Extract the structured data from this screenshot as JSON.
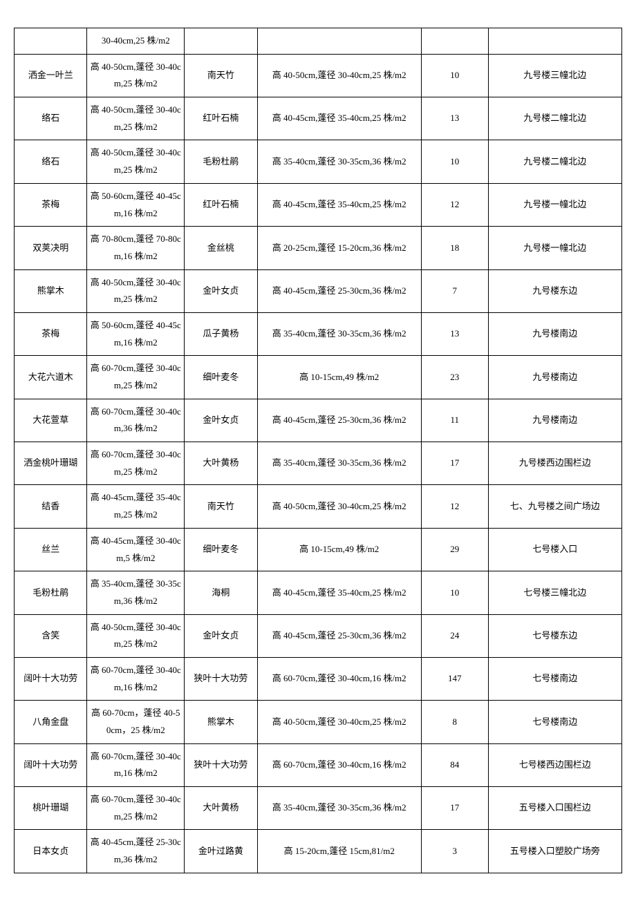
{
  "table": {
    "columns": [
      "col0",
      "col1",
      "col2",
      "col3",
      "col4",
      "col5"
    ],
    "rows": [
      [
        "",
        "30-40cm,25 株/m2",
        "",
        "",
        "",
        ""
      ],
      [
        "洒金一叶兰",
        "高 40-50cm,蓬径 30-40cm,25 株/m2",
        "南天竹",
        "高 40-50cm,蓬径 30-40cm,25 株/m2",
        "10",
        "九号楼三幢北边"
      ],
      [
        "络石",
        "高 40-50cm,蓬径 30-40cm,25 株/m2",
        "红叶石楠",
        "高 40-45cm,蓬径 35-40cm,25 株/m2",
        "13",
        "九号楼二幢北边"
      ],
      [
        "络石",
        "高 40-50cm,蓬径 30-40cm,25 株/m2",
        "毛粉杜鹃",
        "高 35-40cm,蓬径 30-35cm,36 株/m2",
        "10",
        "九号楼二幢北边"
      ],
      [
        "茶梅",
        "高 50-60cm,蓬径 40-45cm,16 株/m2",
        "红叶石楠",
        "高 40-45cm,蓬径 35-40cm,25 株/m2",
        "12",
        "九号楼一幢北边"
      ],
      [
        "双荚决明",
        "高 70-80cm,蓬径 70-80cm,16 株/m2",
        "金丝桃",
        "高 20-25cm,蓬径 15-20cm,36 株/m2",
        "18",
        "九号楼一幢北边"
      ],
      [
        "熊掌木",
        "高 40-50cm,蓬径 30-40cm,25 株/m2",
        "金叶女贞",
        "高 40-45cm,蓬径 25-30cm,36 株/m2",
        "7",
        "九号楼东边"
      ],
      [
        "茶梅",
        "高 50-60cm,蓬径 40-45cm,16 株/m2",
        "瓜子黄杨",
        "高 35-40cm,蓬径 30-35cm,36 株/m2",
        "13",
        "九号楼南边"
      ],
      [
        "大花六道木",
        "高 60-70cm,蓬径 30-40cm,25 株/m2",
        "细叶麦冬",
        "高 10-15cm,49 株/m2",
        "23",
        "九号楼南边"
      ],
      [
        "大花萱草",
        "高 60-70cm,蓬径 30-40cm,36 株/m2",
        "金叶女贞",
        "高 40-45cm,蓬径 25-30cm,36 株/m2",
        "11",
        "九号楼南边"
      ],
      [
        "洒金桃叶珊瑚",
        "高 60-70cm,蓬径 30-40cm,25 株/m2",
        "大叶黄杨",
        "高 35-40cm,蓬径 30-35cm,36 株/m2",
        "17",
        "九号楼西边围栏边"
      ],
      [
        "结香",
        "高 40-45cm,蓬径 35-40cm,25 株/m2",
        "南天竹",
        "高 40-50cm,蓬径 30-40cm,25 株/m2",
        "12",
        "七、九号楼之间广场边"
      ],
      [
        "丝兰",
        "高 40-45cm,蓬径 30-40cm,5 株/m2",
        "细叶麦冬",
        "高 10-15cm,49 株/m2",
        "29",
        "七号楼入口"
      ],
      [
        "毛粉杜鹃",
        "高 35-40cm,蓬径 30-35cm,36 株/m2",
        "海桐",
        "高 40-45cm,蓬径 35-40cm,25 株/m2",
        "10",
        "七号楼三幢北边"
      ],
      [
        "含笑",
        "高 40-50cm,蓬径 30-40cm,25 株/m2",
        "金叶女贞",
        "高 40-45cm,蓬径 25-30cm,36 株/m2",
        "24",
        "七号楼东边"
      ],
      [
        "阔叶十大功劳",
        "高 60-70cm,蓬径 30-40cm,16 株/m2",
        "狭叶十大功劳",
        "高 60-70cm,蓬径 30-40cm,16 株/m2",
        "147",
        "七号楼南边"
      ],
      [
        "八角金盘",
        "高 60-70cm，蓬径 40-50cm，25 株/m2",
        "熊掌木",
        "高 40-50cm,蓬径 30-40cm,25 株/m2",
        "8",
        "七号楼南边"
      ],
      [
        "阔叶十大功劳",
        "高 60-70cm,蓬径 30-40cm,16 株/m2",
        "狭叶十大功劳",
        "高 60-70cm,蓬径 30-40cm,16 株/m2",
        "84",
        "七号楼西边围栏边"
      ],
      [
        "桃叶珊瑚",
        "高 60-70cm,蓬径 30-40cm,25 株/m2",
        "大叶黄杨",
        "高 35-40cm,蓬径 30-35cm,36 株/m2",
        "17",
        "五号楼入口围栏边"
      ],
      [
        "日本女贞",
        "高 40-45cm,蓬径 25-30cm,36 株/m2",
        "金叶过路黄",
        "高 15-20cm,蓬径 15cm,81/m2",
        "3",
        "五号楼入口塑胶广场旁"
      ]
    ]
  }
}
